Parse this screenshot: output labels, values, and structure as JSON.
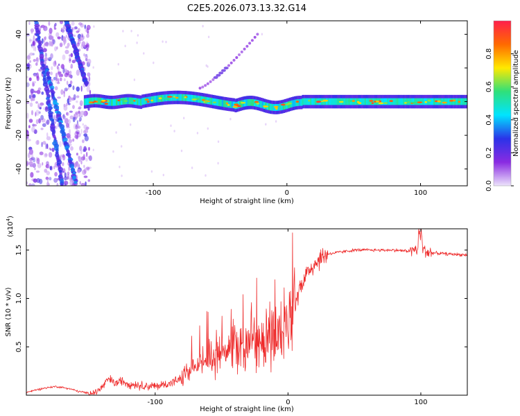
{
  "title": "C2E5.2026.073.13.32.G14",
  "chart_data": [
    {
      "type": "heatmap",
      "name": "spectrogram",
      "xlabel": "Height of straight line (km)",
      "ylabel": "Frequency (Hz)",
      "xlim": [
        -195,
        135
      ],
      "ylim": [
        -50,
        48
      ],
      "xticks": [
        -100,
        0,
        100
      ],
      "yticks": [
        40,
        20,
        0,
        -20,
        -40
      ],
      "colorbar": {
        "label": "Normalized spectral amplitude",
        "range": [
          0.0,
          1.0
        ],
        "ticks": [
          0.0,
          0.2,
          0.4,
          0.6,
          0.8
        ],
        "tick_labels": [
          "0.0",
          "0.2",
          "0.4",
          "0.6",
          "0.8"
        ],
        "colors": [
          "#ece3fb",
          "#8a2be2",
          "#2b33e8",
          "#00e4ff",
          "#2fe07a",
          "#ffe900",
          "#ff6a00",
          "#ff1f4b"
        ]
      },
      "features": [
        {
          "label": "carrier band",
          "x_start": -152,
          "x_end": 135,
          "center_freq": 0,
          "half_width": 3
        },
        {
          "label": "descending streak",
          "x": [
            -188,
            -168
          ],
          "freq": [
            48,
            -50
          ]
        },
        {
          "label": "descending streak",
          "x": [
            -165,
            -150
          ],
          "freq": [
            48,
            10
          ]
        },
        {
          "label": "descending streak",
          "x": [
            -180,
            -158
          ],
          "freq": [
            20,
            -48
          ]
        },
        {
          "label": "rising feature",
          "x": [
            -65,
            -22
          ],
          "freq": [
            8,
            40
          ]
        }
      ]
    },
    {
      "type": "line",
      "name": "snr",
      "xlabel": "Height of straight line (km)",
      "ylabel": "SNR (10 * v/v)",
      "scale_label": "(x10",
      "scale_exponent": "4",
      "xlim": [
        -197,
        135
      ],
      "ylim": [
        0,
        1.72
      ],
      "xticks": [
        -100,
        0,
        100
      ],
      "yticks": [
        0.5,
        1.0,
        1.5
      ],
      "ytick_labels": [
        "0.5",
        "1.0",
        "1.5"
      ],
      "series": [
        {
          "name": "SNR",
          "color": "#ee2b2b",
          "x": [
            -197,
            -185,
            -175,
            -165,
            -158,
            -150,
            -145,
            -140,
            -135,
            -130,
            -125,
            -120,
            -110,
            -100,
            -90,
            -80,
            -75,
            -70,
            -65,
            -60,
            -55,
            -50,
            -45,
            -40,
            -35,
            -30,
            -25,
            -20,
            -15,
            -10,
            -5,
            0,
            5,
            10,
            15,
            20,
            25,
            30,
            40,
            50,
            60,
            70,
            80,
            90,
            95,
            100,
            105,
            110,
            120,
            135
          ],
          "values": [
            0.03,
            0.07,
            0.09,
            0.07,
            0.04,
            0.02,
            0.03,
            0.08,
            0.17,
            0.12,
            0.15,
            0.12,
            0.1,
            0.09,
            0.12,
            0.17,
            0.22,
            0.28,
            0.33,
            0.38,
            0.42,
            0.46,
            0.5,
            0.52,
            0.54,
            0.55,
            0.56,
            0.58,
            0.58,
            0.6,
            0.62,
            0.7,
            0.95,
            1.15,
            1.28,
            1.36,
            1.42,
            1.46,
            1.48,
            1.5,
            1.5,
            1.5,
            1.5,
            1.49,
            1.5,
            1.52,
            1.48,
            1.47,
            1.46,
            1.45
          ]
        }
      ]
    }
  ]
}
